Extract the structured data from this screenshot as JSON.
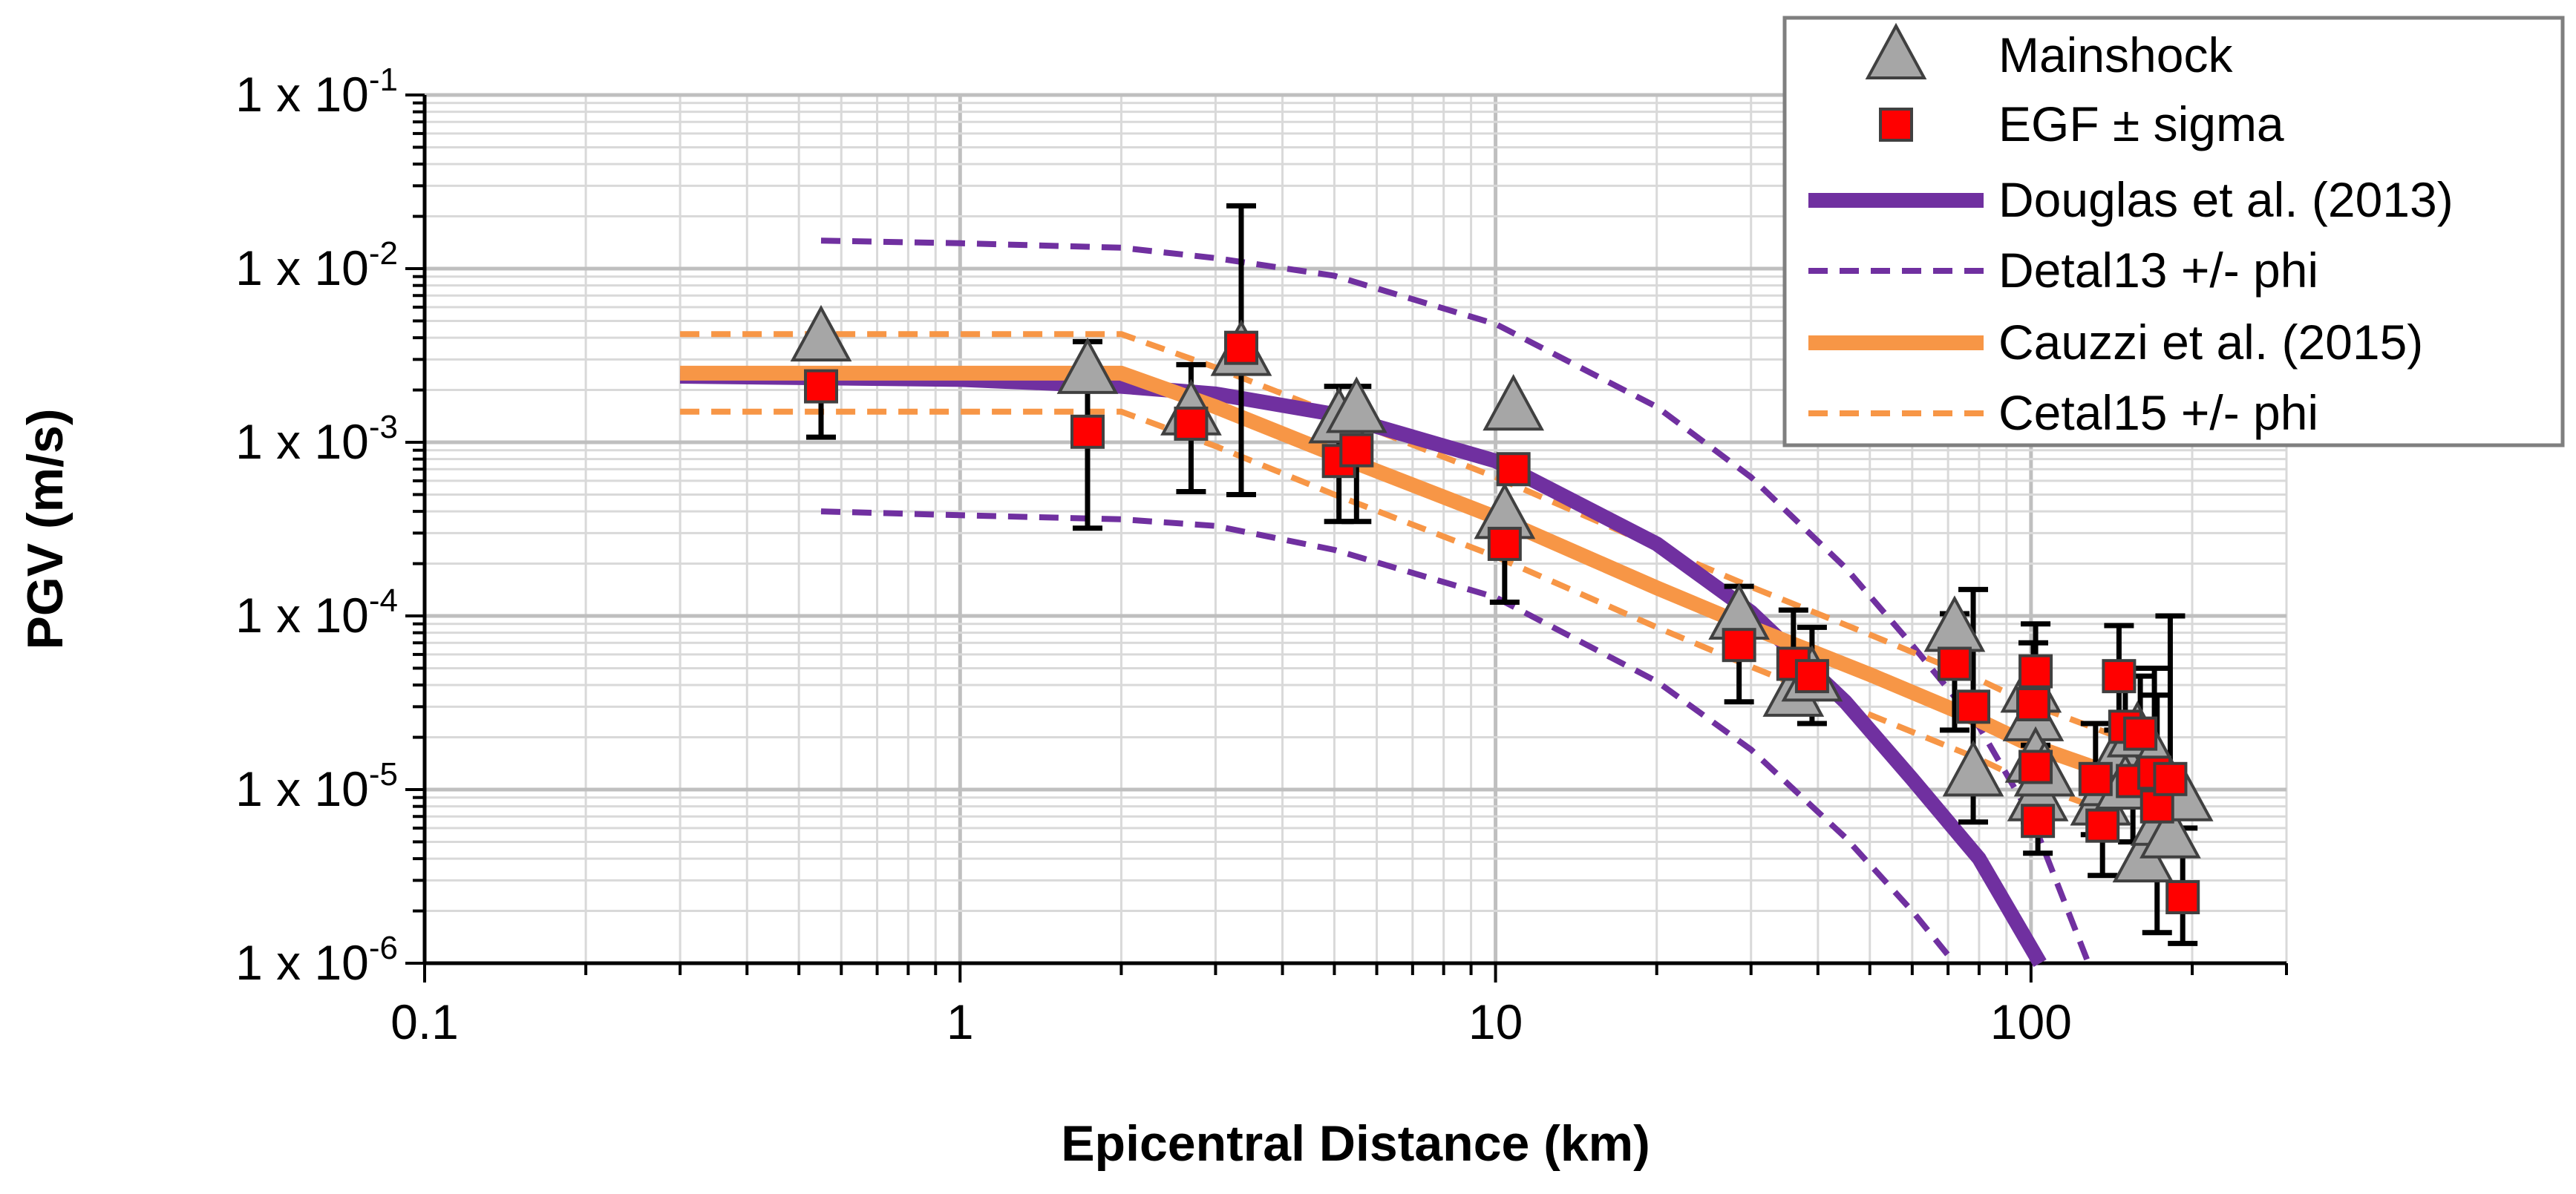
{
  "chart_data": {
    "type": "scatter",
    "xlabel": "Epicentral Distance (km)",
    "ylabel": "PGV (m/s)",
    "xscale": "log",
    "yscale": "log",
    "xlim": [
      0.1,
      300
    ],
    "ylim": [
      1e-06,
      0.1
    ],
    "grid": true,
    "legend_position": "top-right",
    "x_ticks": [
      {
        "value": 0.1,
        "label": "0.1"
      },
      {
        "value": 1,
        "label": "1"
      },
      {
        "value": 10,
        "label": "10"
      },
      {
        "value": 100,
        "label": "100"
      }
    ],
    "y_ticks": [
      {
        "value": 0.1,
        "base": "1 x 10",
        "exp": "-1"
      },
      {
        "value": 0.01,
        "base": "1 x 10",
        "exp": "-2"
      },
      {
        "value": 0.001,
        "base": "1 x 10",
        "exp": "-3"
      },
      {
        "value": 0.0001,
        "base": "1 x 10",
        "exp": "-4"
      },
      {
        "value": 1e-05,
        "base": "1 x 10",
        "exp": "-5"
      },
      {
        "value": 1e-06,
        "base": "1 x 10",
        "exp": "-6"
      }
    ],
    "colors": {
      "mainshock": "#a6a6a6",
      "egf": "#ff0000",
      "douglas": "#7030a0",
      "cauzzi": "#f79646"
    },
    "series": [
      {
        "name": "Mainshock",
        "kind": "marker-triangle",
        "points": [
          [
            0.55,
            0.004
          ],
          [
            1.73,
            0.0026
          ],
          [
            2.7,
            0.0015
          ],
          [
            3.35,
            0.0033
          ],
          [
            5.1,
            0.00135
          ],
          [
            5.5,
            0.00155
          ],
          [
            10.4,
            0.00038
          ],
          [
            10.8,
            0.0016
          ],
          [
            28.5,
            0.0001
          ],
          [
            36,
            3.6e-05
          ],
          [
            39,
            4.4e-05
          ],
          [
            72,
            8.5e-05
          ],
          [
            78,
            1.25e-05
          ],
          [
            100,
            3.8e-05
          ],
          [
            101,
            2.6e-05
          ],
          [
            102,
            1.5e-05
          ],
          [
            103,
            9e-06
          ],
          [
            106,
            1.25e-05
          ],
          [
            135,
            8.5e-06
          ],
          [
            140,
            1.1e-05
          ],
          [
            146,
            1.6e-05
          ],
          [
            150,
            1.05e-05
          ],
          [
            158,
            2.1e-05
          ],
          [
            162,
            4e-06
          ],
          [
            170,
            1.5e-05
          ],
          [
            175,
            6.5e-06
          ],
          [
            182,
            5.5e-06
          ],
          [
            192,
            9e-06
          ]
        ]
      },
      {
        "name": "EGF ± sigma",
        "kind": "marker-square-errorbar",
        "points": [
          {
            "x": 0.55,
            "y": 0.0021,
            "lo": 0.00107,
            "hi": 0.0021
          },
          {
            "x": 1.73,
            "y": 0.00115,
            "lo": 0.00032,
            "hi": 0.0038
          },
          {
            "x": 2.7,
            "y": 0.00128,
            "lo": 0.00052,
            "hi": 0.0028
          },
          {
            "x": 3.35,
            "y": 0.0035,
            "lo": 0.0005,
            "hi": 0.023
          },
          {
            "x": 5.1,
            "y": 0.00078,
            "lo": 0.00035,
            "hi": 0.0021
          },
          {
            "x": 5.5,
            "y": 0.0009,
            "lo": 0.00035,
            "hi": 0.0021
          },
          {
            "x": 10.4,
            "y": 0.00026,
            "lo": 0.00012,
            "hi": 0.00026
          },
          {
            "x": 10.8,
            "y": 0.0007,
            "lo": 0.0007,
            "hi": 0.0007
          },
          {
            "x": 28.5,
            "y": 6.8e-05,
            "lo": 3.2e-05,
            "hi": 0.000148
          },
          {
            "x": 36,
            "y": 5.3e-05,
            "lo": 3.3e-05,
            "hi": 0.000108
          },
          {
            "x": 39,
            "y": 4.5e-05,
            "lo": 2.4e-05,
            "hi": 8.6e-05
          },
          {
            "x": 72,
            "y": 5.3e-05,
            "lo": 2.2e-05,
            "hi": 0.000103
          },
          {
            "x": 78,
            "y": 3e-05,
            "lo": 6.5e-06,
            "hi": 0.000142
          },
          {
            "x": 102,
            "y": 4.8e-05,
            "lo": 1.8e-05,
            "hi": 9e-05
          },
          {
            "x": 101,
            "y": 3.1e-05,
            "lo": 1.4e-05,
            "hi": 7e-05
          },
          {
            "x": 102,
            "y": 1.35e-05,
            "lo": 6.5e-06,
            "hi": 3e-05
          },
          {
            "x": 103,
            "y": 6.6e-06,
            "lo": 4.3e-06,
            "hi": 1.3e-05
          },
          {
            "x": 132,
            "y": 1.15e-05,
            "lo": 5.5e-06,
            "hi": 2.4e-05
          },
          {
            "x": 136,
            "y": 6.2e-06,
            "lo": 3.2e-06,
            "hi": 1.2e-05
          },
          {
            "x": 146,
            "y": 4.5e-05,
            "lo": 2.2e-05,
            "hi": 8.8e-05
          },
          {
            "x": 150,
            "y": 2.3e-05,
            "lo": 1.1e-05,
            "hi": 5e-05
          },
          {
            "x": 155,
            "y": 1.12e-05,
            "lo": 5e-06,
            "hi": 2.5e-05
          },
          {
            "x": 160,
            "y": 2.1e-05,
            "lo": 1e-05,
            "hi": 4.5e-05
          },
          {
            "x": 170,
            "y": 1.25e-05,
            "lo": 5.5e-06,
            "hi": 5e-05
          },
          {
            "x": 172,
            "y": 8e-06,
            "lo": 1.5e-06,
            "hi": 3.5e-05
          },
          {
            "x": 182,
            "y": 1.15e-05,
            "lo": 4.5e-06,
            "hi": 0.0001
          },
          {
            "x": 192,
            "y": 2.4e-06,
            "lo": 1.3e-06,
            "hi": 6e-06
          }
        ]
      },
      {
        "name": "Douglas et al. (2013)",
        "kind": "line-solid",
        "color": "#7030a0",
        "points": [
          [
            0.3,
            0.0024
          ],
          [
            1,
            0.0023
          ],
          [
            2,
            0.0021
          ],
          [
            3,
            0.0019
          ],
          [
            5,
            0.00145
          ],
          [
            10,
            0.00078
          ],
          [
            20,
            0.00026
          ],
          [
            30,
            0.000105
          ],
          [
            45,
            3.2e-05
          ],
          [
            60,
            1.15e-05
          ],
          [
            80,
            4e-06
          ],
          [
            104,
            1e-06
          ]
        ]
      },
      {
        "name": "Detal13 +/- phi",
        "kind": "line-dashed",
        "color": "#7030a0",
        "lines": [
          [
            [
              0.55,
              0.0145
            ],
            [
              1,
              0.014
            ],
            [
              2,
              0.0132
            ],
            [
              3,
              0.0115
            ],
            [
              5,
              0.0091
            ],
            [
              10,
              0.0048
            ],
            [
              20,
              0.0016
            ],
            [
              30,
              0.00063
            ],
            [
              45,
              0.00019
            ],
            [
              60,
              6.8e-05
            ],
            [
              80,
              2.3e-05
            ],
            [
              100,
              7e-06
            ],
            [
              128,
              1e-06
            ]
          ],
          [
            [
              0.55,
              0.0004
            ],
            [
              1,
              0.00038
            ],
            [
              2,
              0.00036
            ],
            [
              3,
              0.00033
            ],
            [
              5,
              0.00024
            ],
            [
              10,
              0.000128
            ],
            [
              20,
              4.2e-05
            ],
            [
              30,
              1.7e-05
            ],
            [
              45,
              5.3e-06
            ],
            [
              60,
              2e-06
            ],
            [
              72,
              1e-06
            ]
          ]
        ]
      },
      {
        "name": "Cauzzi et al. (2015)",
        "kind": "line-solid",
        "color": "#f79646",
        "points": [
          [
            0.3,
            0.0025
          ],
          [
            2,
            0.0025
          ],
          [
            3,
            0.0016
          ],
          [
            5,
            0.00085
          ],
          [
            10,
            0.00037
          ],
          [
            20,
            0.000145
          ],
          [
            30,
            8.6e-05
          ],
          [
            50,
            4.6e-05
          ],
          [
            80,
            2.5e-05
          ],
          [
            100,
            1.8e-05
          ],
          [
            140,
            1.25e-05
          ]
        ]
      },
      {
        "name": "Cetal15 +/- phi",
        "kind": "line-dashed",
        "color": "#f79646",
        "lines": [
          [
            [
              0.3,
              0.0042
            ],
            [
              2,
              0.0042
            ],
            [
              3,
              0.0027
            ],
            [
              5,
              0.00145
            ],
            [
              10,
              0.00063
            ],
            [
              20,
              0.00025
            ],
            [
              30,
              0.000147
            ],
            [
              50,
              7.8e-05
            ],
            [
              80,
              4.3e-05
            ],
            [
              100,
              3.1e-05
            ],
            [
              140,
              2.1e-05
            ]
          ],
          [
            [
              0.3,
              0.0015
            ],
            [
              2,
              0.0015
            ],
            [
              3,
              0.00095
            ],
            [
              5,
              0.0005
            ],
            [
              10,
              0.00022
            ],
            [
              20,
              8.6e-05
            ],
            [
              30,
              5.1e-05
            ],
            [
              50,
              2.7e-05
            ],
            [
              80,
              1.5e-05
            ],
            [
              100,
              1.08e-05
            ],
            [
              140,
              7.4e-06
            ]
          ]
        ]
      }
    ],
    "legend": [
      {
        "label": "Mainshock",
        "symbol": "triangle"
      },
      {
        "label": "EGF ± sigma",
        "symbol": "square"
      },
      {
        "label": "Douglas et al. (2013)",
        "symbol": "line-solid",
        "color": "#7030a0"
      },
      {
        "label": "Detal13 +/- phi",
        "symbol": "line-dashed",
        "color": "#7030a0"
      },
      {
        "label": "Cauzzi et al. (2015)",
        "symbol": "line-solid",
        "color": "#f79646"
      },
      {
        "label": "Cetal15 +/- phi",
        "symbol": "line-dashed",
        "color": "#f79646"
      }
    ]
  }
}
